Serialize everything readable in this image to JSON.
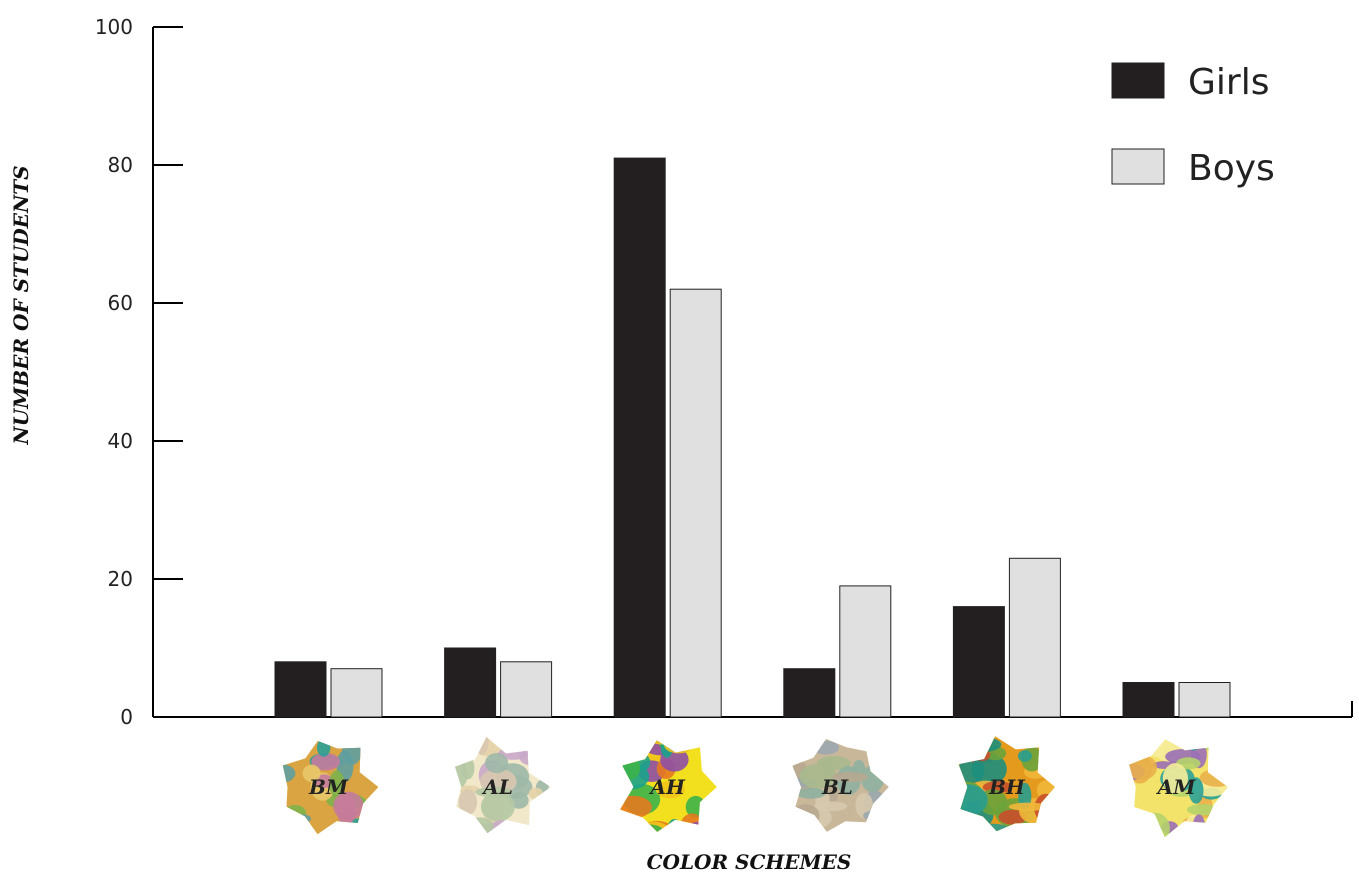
{
  "chart_data": {
    "type": "bar",
    "title": "",
    "xlabel": "COLOR SCHEMES",
    "ylabel": "NUMBER OF STUDENTS",
    "ylim": [
      0,
      100
    ],
    "yticks": [
      "0",
      "20",
      "40",
      "60",
      "80",
      "100"
    ],
    "categories": [
      "BM",
      "AL",
      "AH",
      "BL",
      "BH",
      "AM"
    ],
    "series": [
      {
        "name": "Girls",
        "color": "#231f20",
        "values": [
          8,
          10,
          81,
          7,
          16,
          5
        ]
      },
      {
        "name": "Boys",
        "color": "#e0e0e0",
        "values": [
          7,
          8,
          62,
          19,
          23,
          5
        ]
      }
    ],
    "legend_position": "top-right",
    "grid": false,
    "category_images": [
      {
        "label": "BM",
        "palette": [
          "#d9a441",
          "#2aa198",
          "#7fb24a",
          "#e8c86a",
          "#c77b9b",
          "#5f9ea0"
        ]
      },
      {
        "label": "AL",
        "palette": [
          "#f1e7c9",
          "#b4c8a4",
          "#c9a8c9",
          "#e4d3a8",
          "#9fb8a8",
          "#d8c6b0"
        ]
      },
      {
        "label": "AH",
        "palette": [
          "#f2e01f",
          "#3cb34a",
          "#e57a20",
          "#8e4fa6",
          "#1aa38c",
          "#f0c419"
        ]
      },
      {
        "label": "BL",
        "palette": [
          "#c9b79a",
          "#8fb0a0",
          "#b7a890",
          "#d6c9ad",
          "#9aa7b0",
          "#a9b98d"
        ]
      },
      {
        "label": "BH",
        "palette": [
          "#e39a1d",
          "#1d8f7d",
          "#6aa33b",
          "#c84f2b",
          "#f0b73a",
          "#2a9d8f"
        ]
      },
      {
        "label": "AM",
        "palette": [
          "#f4e36a",
          "#9a6fb6",
          "#2aa198",
          "#e9b04a",
          "#b5d36b",
          "#f6ec9a"
        ]
      }
    ]
  }
}
